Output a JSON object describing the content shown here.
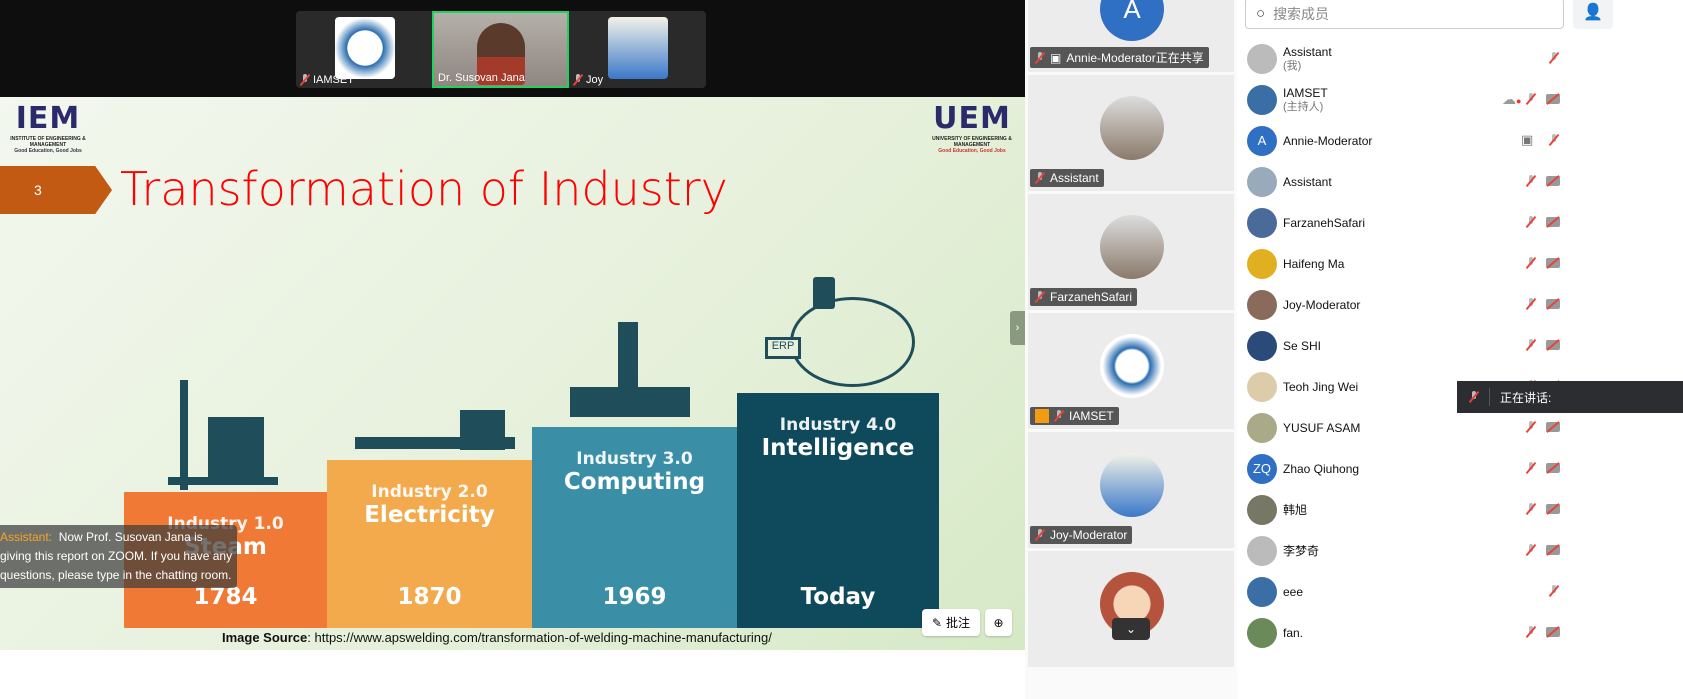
{
  "video_strip": [
    {
      "name": "IAMSET",
      "muted": true,
      "avatar": "iamset-logo"
    },
    {
      "name": "Dr. Susovan Jana",
      "muted": false,
      "avatar": "video",
      "active_speaker": true
    },
    {
      "name": "Joy",
      "muted": true,
      "avatar": "fish"
    }
  ],
  "slide": {
    "number": "3",
    "title": "Transformation of Industry",
    "logo_left": {
      "name": "IEM",
      "subtitle": "INSTITUTE OF ENGINEERING & MANAGEMENT",
      "tagline": "Good Education, Good Jobs"
    },
    "logo_right": {
      "name": "UEM",
      "subtitle": "UNIVERSITY OF ENGINEERING & MANAGEMENT",
      "tagline": "Good Education, Good Jobs"
    },
    "stages": [
      {
        "label": "Industry 1.0",
        "name": "Steam",
        "year": "1784",
        "color": "#f07a35"
      },
      {
        "label": "Industry 2.0",
        "name": "Electricity",
        "year": "1870",
        "color": "#f3aa4c"
      },
      {
        "label": "Industry 3.0",
        "name": "Computing",
        "year": "1969",
        "color": "#3a8fa6"
      },
      {
        "label": "Industry 4.0",
        "name": "Intelligence",
        "year": "Today",
        "color": "#0f4a5c"
      }
    ],
    "erp_label": "ERP",
    "source_label": "Image Source",
    "source_url": ": https://www.apswelding.com/transformation-of-welding-machine-manufacturing/"
  },
  "caption": {
    "speaker": "Assistant:",
    "text": "Now Prof. Susovan Jana is giving this report on ZOOM. If you have any questions, please type in the chatting room."
  },
  "slide_tools": {
    "annotate_label": "批注",
    "zoom_icon": "zoom-in-icon"
  },
  "gallery": [
    {
      "name": "Annie-Moderator正在共享",
      "initial": "A",
      "color": "#2f6fc4",
      "sharing": true
    },
    {
      "name": "Assistant",
      "avatar": "photo"
    },
    {
      "name": "FarzanehSafari",
      "avatar": "photo"
    },
    {
      "name": "IAMSET",
      "avatar": "iamset-logo",
      "host": true
    },
    {
      "name": "Joy-Moderator",
      "avatar": "fish"
    },
    {
      "name": "",
      "avatar": "cartoon"
    }
  ],
  "panel": {
    "search_placeholder": "搜索成员",
    "participants": [
      {
        "name": "Assistant",
        "sub": "(我)",
        "mic": "off",
        "cam": null
      },
      {
        "name": "IAMSET",
        "sub": "(主持人)",
        "mic": "off",
        "cam": "off",
        "recording": true
      },
      {
        "name": "Annie-Moderator",
        "initial": "A",
        "color": "#2f6fc4",
        "mic": "off",
        "sharing": true
      },
      {
        "name": "Assistant",
        "mic": "off",
        "cam": "off"
      },
      {
        "name": "FarzanehSafari",
        "mic": "off",
        "cam": "off"
      },
      {
        "name": "Haifeng Ma",
        "mic": "off",
        "cam": "off"
      },
      {
        "name": "Joy-Moderator",
        "mic": "off",
        "cam": "off"
      },
      {
        "name": "Se SHI",
        "mic": "off",
        "cam": "off"
      },
      {
        "name": "Teoh Jing Wei",
        "mic": "off",
        "cam": "off"
      },
      {
        "name": "YUSUF ASAM",
        "mic": "off",
        "cam": "off"
      },
      {
        "name": "Zhao Qiuhong",
        "initial": "ZQ",
        "color": "#2f6fc4",
        "mic": "off",
        "cam": "off"
      },
      {
        "name": "韩旭",
        "mic": "off",
        "cam": "off"
      },
      {
        "name": "李梦奇",
        "mic": "off",
        "cam": "off"
      },
      {
        "name": "eee",
        "mic": "off",
        "cam": null
      },
      {
        "name": "fan.",
        "mic": "off",
        "cam": "off"
      }
    ]
  },
  "speaking_label": "正在讲话:"
}
